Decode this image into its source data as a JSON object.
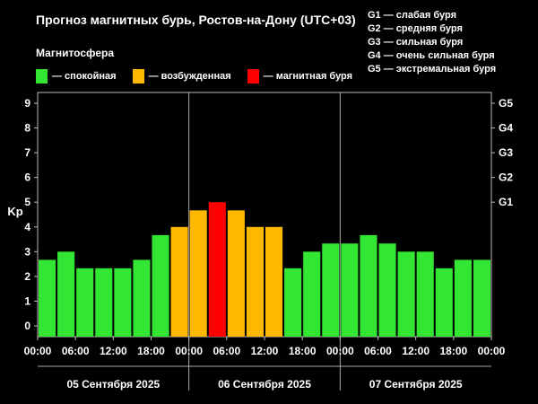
{
  "title": "Прогноз магнитных бурь, Ростов-на-Дону (UTC+03)",
  "magnetosphere_label": "Магнитосфера",
  "legend": [
    {
      "label": "— спокойная",
      "color": "#33e633"
    },
    {
      "label": "— возбужденная",
      "color": "#ffb800"
    },
    {
      "label": "— магнитная буря",
      "color": "#ff0000"
    }
  ],
  "g_legend": [
    "G1 — слабая буря",
    "G2 — средняя буря",
    "G3 — сильная буря",
    "G4 — очень сильная буря",
    "G5 — экстремальная буря"
  ],
  "chart_data": {
    "type": "bar",
    "ylabel": "Kp",
    "ylim": [
      0,
      9
    ],
    "yticks": [
      "0",
      "1",
      "2",
      "3",
      "4",
      "5",
      "6",
      "7",
      "8",
      "9"
    ],
    "right_ticks": [
      {
        "label": "G1",
        "value": 5
      },
      {
        "label": "G2",
        "value": 6
      },
      {
        "label": "G3",
        "value": 7
      },
      {
        "label": "G4",
        "value": 8
      },
      {
        "label": "G5",
        "value": 9
      }
    ],
    "xtick_labels": [
      "00:00",
      "06:00",
      "12:00",
      "18:00",
      "00:00",
      "06:00",
      "12:00",
      "18:00",
      "00:00",
      "06:00",
      "12:00",
      "18:00",
      "00:00"
    ],
    "days": [
      "05 Сентября 2025",
      "06 Сентября 2025",
      "07 Сентября 2025"
    ],
    "bars_per_day": 8,
    "values": [
      2.67,
      3.0,
      2.33,
      2.33,
      2.33,
      2.67,
      3.67,
      4.0,
      4.67,
      5.0,
      4.67,
      4.0,
      4.0,
      2.33,
      3.0,
      3.33,
      3.33,
      3.67,
      3.33,
      3.0,
      3.0,
      2.33,
      2.67,
      2.67
    ],
    "colors": {
      "quiet": "#33e633",
      "active": "#ffb800",
      "storm": "#ff0000"
    },
    "thresholds": {
      "active": 4,
      "storm": 5
    }
  }
}
